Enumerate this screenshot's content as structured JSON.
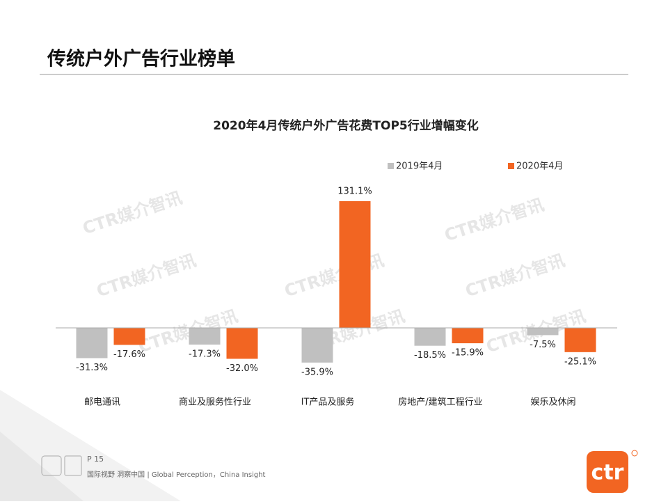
{
  "header": {
    "title": "传统户外广告行业榜单"
  },
  "chart_data": {
    "type": "bar",
    "title": "2020年4月传统户外广告花费TOP5行业增幅变化",
    "categories": [
      "邮电通讯",
      "商业及服务性行业",
      "IT产品及服务",
      "房地产/建筑工程行业",
      "娱乐及休闲"
    ],
    "series": [
      {
        "name": "2019年4月",
        "color": "#c0c0c0",
        "values": [
          -31.3,
          -17.3,
          -35.9,
          -18.5,
          -7.5
        ],
        "value_labels": [
          "-31.3%",
          "-17.3%",
          "-35.9%",
          "-18.5%",
          "-7.5%"
        ]
      },
      {
        "name": "2020年4月",
        "color": "#f26522",
        "values": [
          -17.6,
          -32.0,
          131.1,
          -15.9,
          -25.1
        ],
        "value_labels": [
          "-17.6%",
          "-32.0%",
          "131.1%",
          "-15.9%",
          "-25.1%"
        ]
      }
    ],
    "legend": "top-right"
  },
  "watermark": "CTR媒介智讯",
  "footer": {
    "page": "P 15",
    "tagline": "国际视野  洞察中国 |  Global Perception，China Insight",
    "logo": "ctr"
  }
}
